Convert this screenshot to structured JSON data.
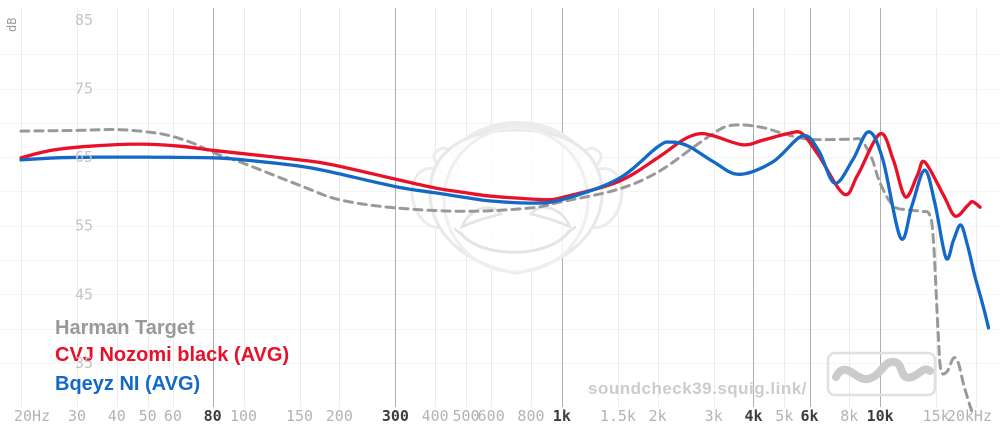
{
  "chart_data": {
    "type": "line",
    "watermark": "soundcheck39.squig.link/",
    "x_axis": {
      "unit": "Hz",
      "scale": "log",
      "min": 20,
      "max": 20000,
      "ticks": [
        {
          "f": 20,
          "label": "20Hz",
          "strong": false
        },
        {
          "f": 30,
          "label": "30",
          "strong": false
        },
        {
          "f": 40,
          "label": "40",
          "strong": false
        },
        {
          "f": 50,
          "label": "50",
          "strong": false
        },
        {
          "f": 60,
          "label": "60",
          "strong": false
        },
        {
          "f": 80,
          "label": "80",
          "strong": true
        },
        {
          "f": 100,
          "label": "100",
          "strong": false
        },
        {
          "f": 150,
          "label": "150",
          "strong": false
        },
        {
          "f": 200,
          "label": "200",
          "strong": false
        },
        {
          "f": 300,
          "label": "300",
          "strong": true
        },
        {
          "f": 400,
          "label": "400",
          "strong": false
        },
        {
          "f": 500,
          "label": "500",
          "strong": false
        },
        {
          "f": 600,
          "label": "600",
          "strong": false
        },
        {
          "f": 800,
          "label": "800",
          "strong": false
        },
        {
          "f": 1000,
          "label": "1k",
          "strong": true
        },
        {
          "f": 1500,
          "label": "1.5k",
          "strong": false
        },
        {
          "f": 2000,
          "label": "2k",
          "strong": false
        },
        {
          "f": 3000,
          "label": "3k",
          "strong": false
        },
        {
          "f": 4000,
          "label": "4k",
          "strong": true
        },
        {
          "f": 5000,
          "label": "5k",
          "strong": false
        },
        {
          "f": 6000,
          "label": "6k",
          "strong": true
        },
        {
          "f": 8000,
          "label": "8k",
          "strong": false
        },
        {
          "f": 10000,
          "label": "10k",
          "strong": true
        },
        {
          "f": 15000,
          "label": "15k",
          "strong": false
        },
        {
          "f": 20000,
          "label": "20kHz",
          "strong": false
        }
      ]
    },
    "y_axis": {
      "unit": "dB",
      "tick_labels": [
        85,
        75,
        65,
        55,
        45,
        35
      ],
      "grid_dB": [
        80,
        75,
        70,
        65,
        60,
        55,
        50,
        45,
        40,
        35
      ],
      "ylim": [
        27,
        87
      ]
    },
    "grid": {
      "light_line_color": "#ececec",
      "strong_line_color": "#aeaeae",
      "horizontal_line_color": "#f4f4f4"
    },
    "series": [
      {
        "name": "Harman Target",
        "color": "#999999",
        "style": "dashed",
        "points": [
          [
            20,
            68.8
          ],
          [
            30,
            68.9
          ],
          [
            41,
            69.0
          ],
          [
            55,
            68.4
          ],
          [
            68,
            67.2
          ],
          [
            80,
            65.7
          ],
          [
            100,
            64.1
          ],
          [
            150,
            60.9
          ],
          [
            200,
            58.8
          ],
          [
            300,
            57.6
          ],
          [
            500,
            57.1
          ],
          [
            800,
            57.6
          ],
          [
            1000,
            58.5
          ],
          [
            1500,
            60.3
          ],
          [
            2000,
            62.8
          ],
          [
            2600,
            66.5
          ],
          [
            3000,
            68.5
          ],
          [
            3300,
            69.5
          ],
          [
            3700,
            69.7
          ],
          [
            4300,
            69.3
          ],
          [
            5000,
            68.4
          ],
          [
            6000,
            67.6
          ],
          [
            8000,
            67.6
          ],
          [
            8700,
            67.5
          ],
          [
            9400,
            64.9
          ],
          [
            10000,
            61.2
          ],
          [
            11000,
            57.9
          ],
          [
            12300,
            57.3
          ],
          [
            13500,
            57.1
          ],
          [
            14300,
            56.6
          ],
          [
            14700,
            52.9
          ],
          [
            15200,
            39.8
          ],
          [
            15500,
            34.0
          ],
          [
            16200,
            33.7
          ],
          [
            17000,
            35.7
          ],
          [
            17600,
            35.0
          ],
          [
            18300,
            31.8
          ],
          [
            19100,
            28.9
          ],
          [
            19500,
            27.7
          ]
        ]
      },
      {
        "name": "CVJ Nozomi black (AVG)",
        "color": "#e81129",
        "style": "solid",
        "points": [
          [
            20,
            64.9
          ],
          [
            25,
            66.0
          ],
          [
            33,
            66.6
          ],
          [
            47,
            66.9
          ],
          [
            63,
            66.6
          ],
          [
            80,
            66.0
          ],
          [
            100,
            65.5
          ],
          [
            150,
            64.6
          ],
          [
            190,
            63.9
          ],
          [
            300,
            61.8
          ],
          [
            400,
            60.5
          ],
          [
            500,
            59.8
          ],
          [
            600,
            59.3
          ],
          [
            800,
            58.9
          ],
          [
            900,
            58.8
          ],
          [
            1000,
            59.1
          ],
          [
            1500,
            61.4
          ],
          [
            2000,
            64.9
          ],
          [
            2400,
            67.5
          ],
          [
            2700,
            68.4
          ],
          [
            3000,
            68.1
          ],
          [
            3700,
            66.8
          ],
          [
            4300,
            67.5
          ],
          [
            5200,
            68.5
          ],
          [
            5700,
            68.4
          ],
          [
            6400,
            65.3
          ],
          [
            7700,
            59.6
          ],
          [
            8500,
            62.4
          ],
          [
            10000,
            68.4
          ],
          [
            11000,
            64.6
          ],
          [
            12000,
            59.2
          ],
          [
            13100,
            62.4
          ],
          [
            13800,
            64.3
          ],
          [
            15800,
            59.5
          ],
          [
            17200,
            56.4
          ],
          [
            18800,
            57.9
          ],
          [
            19500,
            58.5
          ],
          [
            20600,
            57.7
          ]
        ]
      },
      {
        "name": "Bqeyz NI (AVG)",
        "color": "#1369c8",
        "style": "solid",
        "points": [
          [
            20,
            64.6
          ],
          [
            26,
            64.9
          ],
          [
            35,
            65.0
          ],
          [
            50,
            65.0
          ],
          [
            80,
            64.9
          ],
          [
            100,
            64.6
          ],
          [
            150,
            63.7
          ],
          [
            190,
            62.8
          ],
          [
            300,
            60.7
          ],
          [
            400,
            59.8
          ],
          [
            500,
            59.1
          ],
          [
            600,
            58.6
          ],
          [
            800,
            58.3
          ],
          [
            1000,
            58.8
          ],
          [
            1500,
            61.8
          ],
          [
            2000,
            66.5
          ],
          [
            2200,
            67.2
          ],
          [
            2500,
            66.6
          ],
          [
            3000,
            64.3
          ],
          [
            3600,
            62.5
          ],
          [
            4600,
            64.3
          ],
          [
            5700,
            68.1
          ],
          [
            6400,
            66.0
          ],
          [
            7200,
            61.2
          ],
          [
            8200,
            64.6
          ],
          [
            9200,
            68.7
          ],
          [
            10200,
            64.6
          ],
          [
            11600,
            53.2
          ],
          [
            12600,
            58.0
          ],
          [
            13800,
            63.1
          ],
          [
            14900,
            58.0
          ],
          [
            16100,
            50.3
          ],
          [
            17000,
            52.9
          ],
          [
            17900,
            55.1
          ],
          [
            18800,
            52.2
          ],
          [
            19800,
            47.8
          ],
          [
            21000,
            43.5
          ],
          [
            21900,
            40.1
          ]
        ]
      }
    ],
    "legend_position": "bottom-left",
    "background": "#ffffff"
  }
}
